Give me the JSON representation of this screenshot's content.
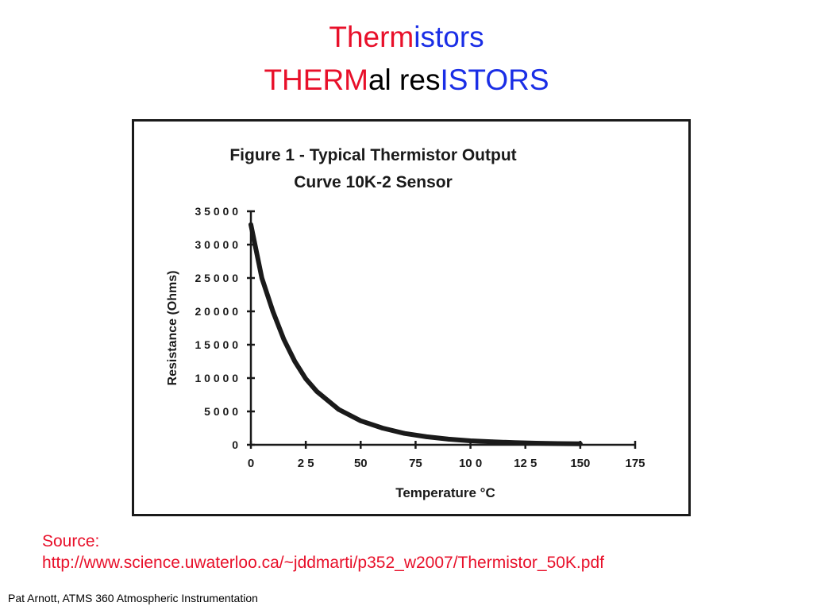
{
  "title": {
    "line1": [
      {
        "text": "Therm",
        "color": "#e8102a"
      },
      {
        "text": "istors",
        "color": "#1a2ee6"
      }
    ],
    "line2": [
      {
        "text": "THERM",
        "color": "#e8102a"
      },
      {
        "text": "al res",
        "color": "#000000"
      },
      {
        "text": "ISTORS",
        "color": "#1a2ee6"
      }
    ]
  },
  "chart_data": {
    "type": "line",
    "title": "Figure 1 - Typical Thermistor Output",
    "subtitle": "Curve 10K-2 Sensor",
    "xlabel": "Temperature °C",
    "ylabel": "Resistance  (Ohms)",
    "xlim": [
      0,
      175
    ],
    "ylim": [
      0,
      35000
    ],
    "xticks": [
      0,
      25,
      50,
      75,
      100,
      125,
      150,
      175
    ],
    "yticks": [
      0,
      5000,
      10000,
      15000,
      20000,
      25000,
      30000,
      35000
    ],
    "xtick_labels": [
      "0",
      "2 5",
      "50",
      "75",
      "10 0",
      "12 5",
      "150",
      "175"
    ],
    "ytick_labels": [
      "0",
      "5 0 0 0",
      "1 0 0 0 0",
      "1 5 0 0 0",
      "2 0 0 0 0",
      "2 5 0 0 0",
      "3 0 0 0 0",
      "3 5 0 0 0"
    ],
    "grid": false,
    "series": [
      {
        "color": "#1a1a1a",
        "x": [
          0,
          5,
          10,
          15,
          20,
          25,
          30,
          40,
          50,
          60,
          70,
          80,
          90,
          100,
          110,
          120,
          130,
          140,
          150
        ],
        "y": [
          33000,
          25000,
          20000,
          15800,
          12500,
          9900,
          8000,
          5300,
          3600,
          2500,
          1700,
          1200,
          850,
          600,
          450,
          320,
          240,
          180,
          140
        ]
      }
    ]
  },
  "source": {
    "label": "Source:",
    "url": "http://www.science.uwaterloo.ca/~jddmarti/p352_w2007/Thermistor_50K.pdf"
  },
  "footer": "Pat Arnott, ATMS 360 Atmospheric Instrumentation"
}
